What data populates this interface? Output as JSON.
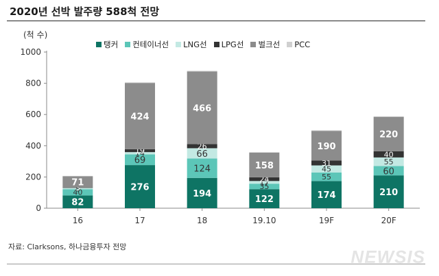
{
  "title": "2020년 선박 발주량 588척 전망",
  "unit": "(척 수)",
  "source": "자료: Clarksons, 하나금융투자 전망",
  "watermark": "NEWSIS",
  "colors": {
    "탱커": "#0e7464",
    "컨테이너선": "#5cc6b8",
    "LNG선": "#c3e9e3",
    "LPG선": "#333333",
    "벌크선": "#8c8c8c",
    "PCC": "#d0d0d0"
  },
  "chart_data": {
    "type": "bar",
    "stacked": true,
    "title": "2020년 선박 발주량 588척 전망",
    "ylabel": "(척 수)",
    "ylim": [
      0,
      1000
    ],
    "yticks": [
      0,
      200,
      400,
      600,
      800,
      1000
    ],
    "categories": [
      "16",
      "17",
      "18",
      "19.10",
      "19F",
      "20F"
    ],
    "legend_position": "top",
    "series": [
      {
        "name": "탱커",
        "values": [
          82,
          276,
          194,
          122,
          174,
          210
        ]
      },
      {
        "name": "컨테이너선",
        "values": [
          40,
          69,
          124,
          35,
          55,
          60
        ]
      },
      {
        "name": "LNG선",
        "values": [
          8,
          14,
          66,
          17,
          45,
          55
        ]
      },
      {
        "name": "LPG선",
        "values": [
          3,
          19,
          26,
          24,
          31,
          40
        ]
      },
      {
        "name": "벌크선",
        "values": [
          71,
          424,
          466,
          158,
          190,
          220
        ]
      },
      {
        "name": "PCC",
        "values": [
          3,
          4,
          4,
          3,
          4,
          3
        ]
      }
    ],
    "labeled_series": [
      "탱커",
      "컨테이너선",
      "LNG선",
      "LPG선",
      "벌크선"
    ]
  }
}
